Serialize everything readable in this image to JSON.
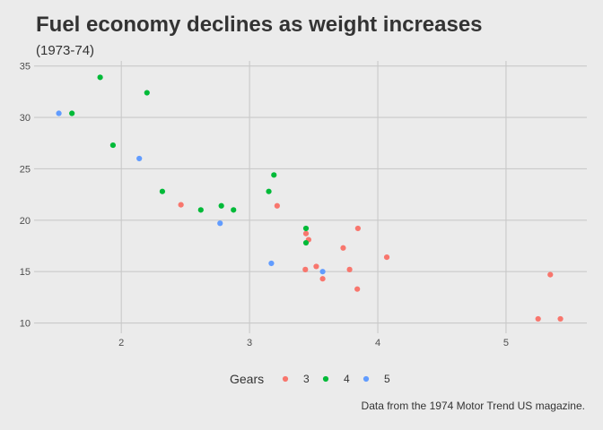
{
  "chart_data": {
    "type": "scatter",
    "title": "Fuel economy declines as weight increases",
    "subtitle": "(1973-74)",
    "caption": "Data from the 1974 Motor Trend US magazine.",
    "xlabel": "",
    "ylabel": "",
    "xlim": [
      1.32,
      5.63
    ],
    "ylim": [
      9.0,
      35.5
    ],
    "x_ticks": [
      2,
      3,
      4,
      5
    ],
    "y_ticks": [
      10,
      15,
      20,
      25,
      30,
      35
    ],
    "grid": true,
    "legend": {
      "title": "Gears",
      "position": "bottom"
    },
    "series": [
      {
        "name": "3",
        "color": "#f8766d",
        "points": [
          {
            "x": 2.465,
            "y": 21.5
          },
          {
            "x": 3.215,
            "y": 21.4
          },
          {
            "x": 3.44,
            "y": 18.7
          },
          {
            "x": 3.46,
            "y": 18.1
          },
          {
            "x": 3.57,
            "y": 14.3
          },
          {
            "x": 4.07,
            "y": 16.4
          },
          {
            "x": 3.73,
            "y": 17.3
          },
          {
            "x": 3.78,
            "y": 15.2
          },
          {
            "x": 5.25,
            "y": 10.4
          },
          {
            "x": 5.424,
            "y": 10.4
          },
          {
            "x": 5.345,
            "y": 14.7
          },
          {
            "x": 3.52,
            "y": 15.5
          },
          {
            "x": 3.435,
            "y": 15.2
          },
          {
            "x": 3.84,
            "y": 13.3
          },
          {
            "x": 3.845,
            "y": 19.2
          }
        ]
      },
      {
        "name": "4",
        "color": "#00ba38",
        "points": [
          {
            "x": 2.62,
            "y": 21.0
          },
          {
            "x": 2.875,
            "y": 21.0
          },
          {
            "x": 2.32,
            "y": 22.8
          },
          {
            "x": 3.19,
            "y": 24.4
          },
          {
            "x": 3.15,
            "y": 22.8
          },
          {
            "x": 3.44,
            "y": 19.2
          },
          {
            "x": 3.44,
            "y": 17.8
          },
          {
            "x": 2.2,
            "y": 32.4
          },
          {
            "x": 1.615,
            "y": 30.4
          },
          {
            "x": 1.835,
            "y": 33.9
          },
          {
            "x": 1.935,
            "y": 27.3
          },
          {
            "x": 2.78,
            "y": 21.4
          }
        ]
      },
      {
        "name": "5",
        "color": "#619cff",
        "points": [
          {
            "x": 2.14,
            "y": 26.0
          },
          {
            "x": 1.513,
            "y": 30.4
          },
          {
            "x": 3.17,
            "y": 15.8
          },
          {
            "x": 2.77,
            "y": 19.7
          },
          {
            "x": 3.57,
            "y": 15.0
          }
        ]
      }
    ]
  }
}
